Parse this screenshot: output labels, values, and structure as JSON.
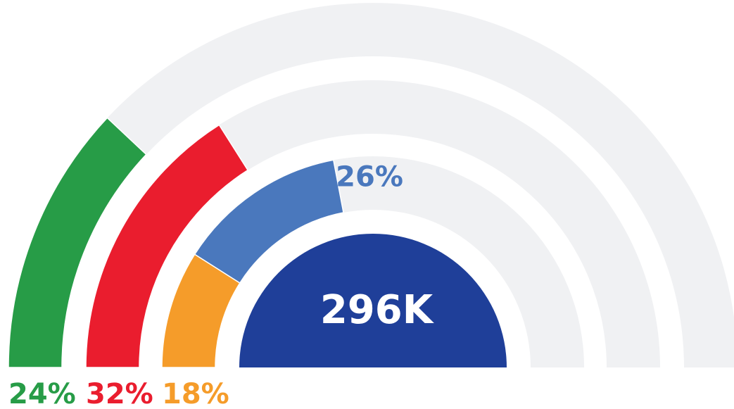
{
  "chart_data": {
    "type": "radial_bar",
    "center_label": "296K",
    "center_color": "#1f3f99",
    "track_color": "#f0f1f3",
    "xlim": [
      0,
      100
    ],
    "series": [
      {
        "colors": [
          "#279c47"
        ],
        "values": [
          24
        ],
        "value_labels": [
          "24%"
        ]
      },
      {
        "colors": [
          "#ea1d2e"
        ],
        "values": [
          32
        ],
        "value_labels": [
          "32%"
        ]
      },
      {
        "colors": [
          "#f59c2a",
          "#4a78bd"
        ],
        "values": [
          18,
          26
        ],
        "value_labels": [
          "18%",
          "26%"
        ]
      }
    ]
  }
}
